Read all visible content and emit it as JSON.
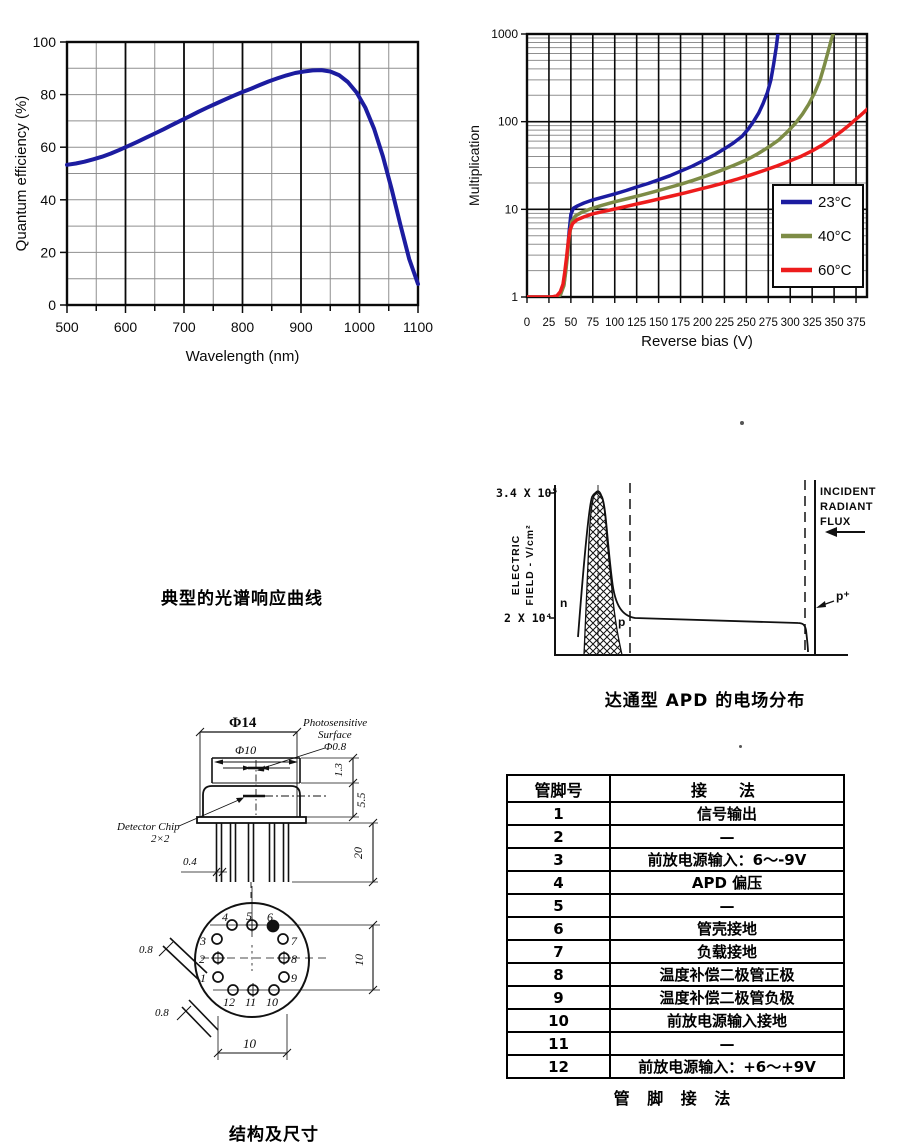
{
  "captions": {
    "spectral": "典型的光谱响应曲线",
    "efield": "达通型 APD 的电场分布",
    "structure": "结构及尺寸",
    "pin_table": "管 脚 接 法"
  },
  "chart_data": [
    {
      "type": "line",
      "title": "",
      "xlabel": "Wavelength (nm)",
      "ylabel": "Quantum efficiency (%)",
      "xlim": [
        500,
        1100
      ],
      "ylim": [
        0,
        100
      ],
      "xticks": [
        500,
        600,
        700,
        800,
        900,
        1000,
        1100
      ],
      "yticks": [
        0,
        20,
        40,
        60,
        80,
        100
      ],
      "x_minor_step": 50,
      "y_minor_step": 10,
      "grid": true,
      "legend_position": "none",
      "series": [
        {
          "name": "quantum-efficiency",
          "color": "#1c1ca0",
          "x": [
            500,
            515,
            530,
            545,
            560,
            575,
            590,
            605,
            620,
            635,
            650,
            665,
            680,
            695,
            710,
            725,
            740,
            755,
            770,
            785,
            800,
            815,
            830,
            845,
            860,
            875,
            890,
            905,
            920,
            935,
            950,
            965,
            980,
            995,
            1010,
            1025,
            1040,
            1055,
            1070,
            1085,
            1100
          ],
          "y": [
            53.3,
            53.8,
            54.5,
            55.4,
            56.4,
            57.6,
            59,
            60.5,
            62,
            63.6,
            65.2,
            66.8,
            68.5,
            70.2,
            71.8,
            73.5,
            75.1,
            76.6,
            78.1,
            79.6,
            81,
            82.3,
            83.7,
            85,
            86.2,
            87.3,
            88.2,
            88.8,
            89.2,
            89.3,
            88.8,
            87.4,
            84.8,
            80.8,
            75,
            67,
            56.5,
            44,
            30.5,
            17.5,
            8
          ]
        }
      ]
    },
    {
      "type": "line",
      "title": "",
      "xlabel": "Reverse bias (V)",
      "ylabel": "Multiplication",
      "xlim": [
        0,
        387.5
      ],
      "ylim_log": [
        1,
        1000
      ],
      "xticks": [
        0,
        25,
        50,
        75,
        100,
        125,
        150,
        175,
        200,
        225,
        250,
        275,
        300,
        325,
        350,
        375
      ],
      "yticks": [
        1,
        10,
        100,
        1000
      ],
      "grid": true,
      "legend_position": "lower right",
      "series": [
        {
          "name": "23°C",
          "color": "#1c1ca0",
          "x": [
            0,
            30,
            38,
            42,
            44,
            46,
            48,
            50,
            53,
            58,
            65,
            75,
            88,
            100,
            113,
            125,
            138,
            150,
            163,
            175,
            188,
            200,
            213,
            225,
            235,
            245,
            252,
            258,
            264,
            269,
            274,
            278,
            281,
            284,
            286
          ],
          "y": [
            1,
            1,
            1.05,
            1.4,
            2,
            3.2,
            5.5,
            8.8,
            10.3,
            11,
            11.8,
            12.8,
            13.9,
            15,
            16.4,
            18,
            19.7,
            21.7,
            24.2,
            27.2,
            31,
            35.5,
            41.5,
            49,
            57,
            68,
            82,
            100,
            125,
            160,
            215,
            300,
            450,
            700,
            1000
          ]
        },
        {
          "name": "40°C",
          "color": "#7d8c46",
          "x": [
            0,
            30,
            38,
            42,
            44,
            46,
            48,
            51,
            55,
            62,
            72,
            85,
            100,
            115,
            130,
            145,
            160,
            175,
            190,
            205,
            220,
            235,
            250,
            263,
            275,
            287,
            297,
            306,
            314,
            321,
            328,
            334,
            339,
            344,
            347,
            349
          ],
          "y": [
            1,
            1,
            1.05,
            1.35,
            1.9,
            2.9,
            4.8,
            7.2,
            8.4,
            9.2,
            10.1,
            11.1,
            12.2,
            13.3,
            14.5,
            15.9,
            17.5,
            19.3,
            21.5,
            24.2,
            27.5,
            31.5,
            36.5,
            43,
            51,
            62,
            77,
            96,
            122,
            158,
            215,
            300,
            440,
            670,
            880,
            1000
          ]
        },
        {
          "name": "60°C",
          "color": "#ed1c1c",
          "x": [
            0,
            28,
            34,
            38,
            41,
            43,
            45,
            47,
            49,
            52,
            57,
            65,
            75,
            88,
            100,
            113,
            125,
            138,
            150,
            165,
            180,
            195,
            210,
            225,
            240,
            255,
            270,
            285,
            300,
            313,
            325,
            337,
            348,
            358,
            367,
            374,
            380,
            384,
            387.5
          ],
          "y": [
            1,
            1,
            1.03,
            1.15,
            1.4,
            1.9,
            2.8,
            4.2,
            5.8,
            6.9,
            7.6,
            8.2,
            8.9,
            9.5,
            10.1,
            10.8,
            11.5,
            12.3,
            13.1,
            14.2,
            15.4,
            16.8,
            18.3,
            20.1,
            22.2,
            24.7,
            27.7,
            31.3,
            35.8,
            40.5,
            46.5,
            54.5,
            65,
            77,
            91,
            105,
            118,
            128,
            138
          ]
        }
      ]
    }
  ],
  "efield_fig": {
    "y_top_label": "3.4 X 10⁵",
    "y_bottom_label": "2 X 10⁴",
    "axis_label_line1": "ELECTRIC",
    "axis_label_line2": "FIELD - V/cm²",
    "incident_line1": "INCIDENT",
    "incident_line2": "RADIANT",
    "incident_line3": "FLUX",
    "n_label": "n",
    "p_label": "p",
    "p_plus_label": "p⁺"
  },
  "mech": {
    "phi14": "Φ14",
    "phi10": "Φ10",
    "photosensitive_line1": "Photosensitive",
    "photosensitive_line2": "Surface",
    "photosensitive_line3": "Φ0.8",
    "dim_1_3": "1.3",
    "dim_5_5": "5.5",
    "detector_chip_line1": "Detector Chip",
    "detector_chip_line2": "2×2",
    "dim_0_4": "0.4",
    "dim_20": "20",
    "dim_0_8_a": "0.8",
    "dim_0_8_b": "0.8",
    "dim_10_right": "10",
    "dim_10_bottom": "10",
    "pin_labels": [
      "1",
      "2",
      "3",
      "4",
      "5",
      "6",
      "7",
      "8",
      "9",
      "10",
      "11",
      "12"
    ]
  },
  "pin_table": {
    "headers": [
      "管脚号",
      "接　法"
    ],
    "rows": [
      [
        "1",
        "信号输出"
      ],
      [
        "2",
        "—"
      ],
      [
        "3",
        "前放电源输入：6～-9V"
      ],
      [
        "4",
        "APD 偏压"
      ],
      [
        "5",
        "—"
      ],
      [
        "6",
        "管壳接地"
      ],
      [
        "7",
        "负载接地"
      ],
      [
        "8",
        "温度补偿二极管正极"
      ],
      [
        "9",
        "温度补偿二极管负极"
      ],
      [
        "10",
        "前放电源输入接地"
      ],
      [
        "11",
        "—"
      ],
      [
        "12",
        "前放电源输入：+6～+9V"
      ]
    ]
  }
}
